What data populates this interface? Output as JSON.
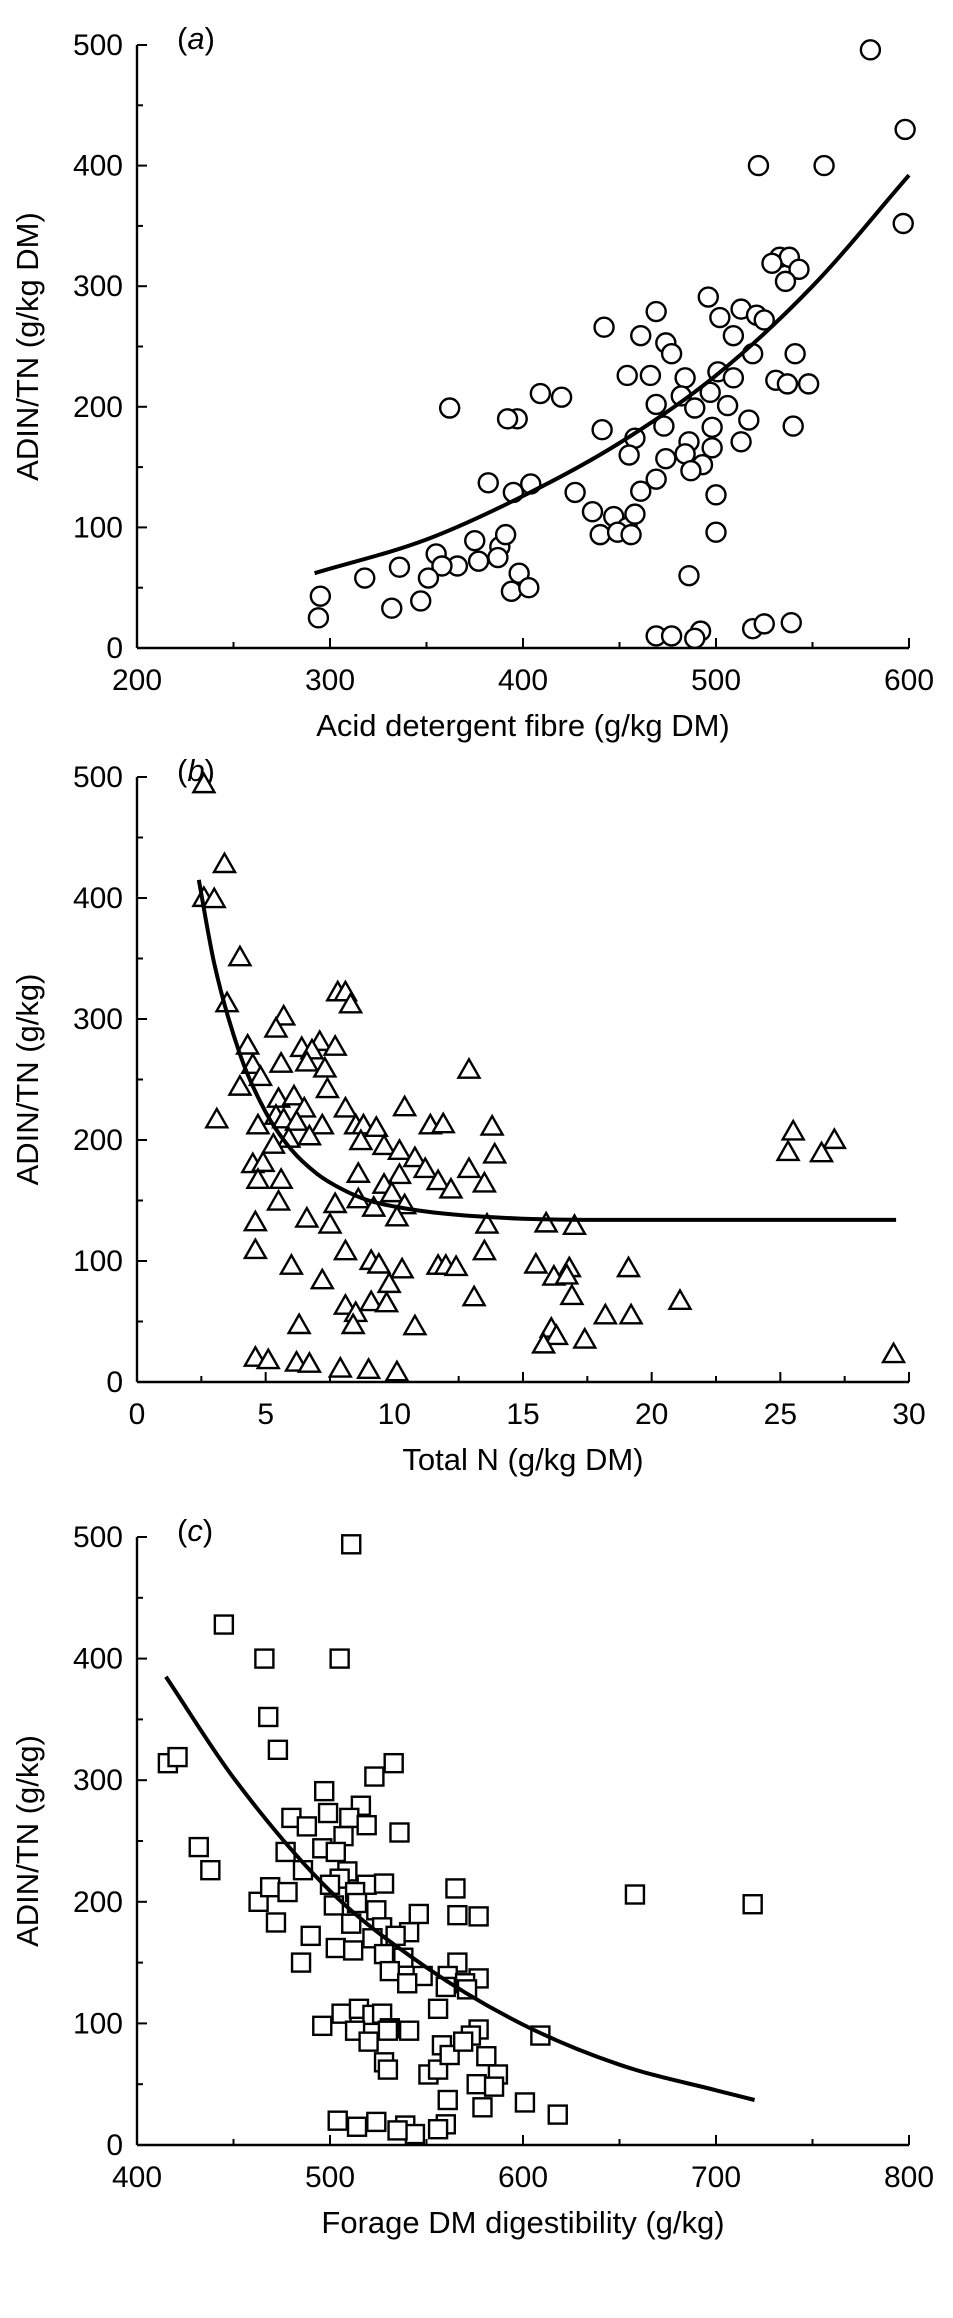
{
  "chart_data": [
    {
      "type": "scatter",
      "panel_label": "a",
      "marker": "circle",
      "xlabel": "Acid detergent fibre (g/kg DM)",
      "ylabel": "ADIN/TN (g/kg DM)",
      "xlim": [
        200,
        600
      ],
      "ylim": [
        0,
        500
      ],
      "xticks": [
        200,
        300,
        400,
        500,
        600
      ],
      "yticks": [
        0,
        100,
        200,
        300,
        400,
        500
      ],
      "fit": {
        "type": "exponential",
        "x": [
          292,
          350,
          400,
          450,
          500,
          550,
          600
        ],
        "y": [
          62,
          90,
          126,
          170,
          226,
          300,
          392
        ]
      },
      "points": [
        [
          580,
          496
        ],
        [
          598,
          430
        ],
        [
          522,
          400
        ],
        [
          556,
          400
        ],
        [
          597,
          352
        ],
        [
          533,
          324
        ],
        [
          538,
          324
        ],
        [
          529,
          319
        ],
        [
          543,
          314
        ],
        [
          536,
          304
        ],
        [
          496,
          291
        ],
        [
          513,
          281
        ],
        [
          469,
          279
        ],
        [
          521,
          276
        ],
        [
          502,
          274
        ],
        [
          525,
          272
        ],
        [
          442,
          266
        ],
        [
          461,
          259
        ],
        [
          509,
          259
        ],
        [
          474,
          253
        ],
        [
          477,
          244
        ],
        [
          519,
          244
        ],
        [
          541,
          244
        ],
        [
          454,
          226
        ],
        [
          501,
          229
        ],
        [
          466,
          226
        ],
        [
          484,
          224
        ],
        [
          509,
          224
        ],
        [
          531,
          222
        ],
        [
          537,
          219
        ],
        [
          548,
          219
        ],
        [
          497,
          212
        ],
        [
          409,
          211
        ],
        [
          482,
          209
        ],
        [
          420,
          208
        ],
        [
          469,
          202
        ],
        [
          506,
          201
        ],
        [
          489,
          199
        ],
        [
          362,
          199
        ],
        [
          397,
          190
        ],
        [
          392,
          190
        ],
        [
          441,
          181
        ],
        [
          498,
          183
        ],
        [
          517,
          189
        ],
        [
          473,
          184
        ],
        [
          540,
          184
        ],
        [
          458,
          174
        ],
        [
          486,
          171
        ],
        [
          513,
          171
        ],
        [
          498,
          166
        ],
        [
          484,
          161
        ],
        [
          455,
          160
        ],
        [
          474,
          157
        ],
        [
          493,
          152
        ],
        [
          487,
          147
        ],
        [
          469,
          140
        ],
        [
          461,
          130
        ],
        [
          427,
          129
        ],
        [
          500,
          127
        ],
        [
          382,
          137
        ],
        [
          395,
          129
        ],
        [
          404,
          136
        ],
        [
          436,
          113
        ],
        [
          447,
          109
        ],
        [
          454,
          100
        ],
        [
          458,
          111
        ],
        [
          440,
          94
        ],
        [
          449,
          96
        ],
        [
          500,
          96
        ],
        [
          375,
          89
        ],
        [
          388,
          84
        ],
        [
          391,
          94
        ],
        [
          456,
          94
        ],
        [
          387,
          75
        ],
        [
          366,
          68
        ],
        [
          355,
          78
        ],
        [
          358,
          68
        ],
        [
          377,
          72
        ],
        [
          336,
          67
        ],
        [
          351,
          58
        ],
        [
          318,
          58
        ],
        [
          398,
          62
        ],
        [
          394,
          47
        ],
        [
          403,
          50
        ],
        [
          347,
          39
        ],
        [
          332,
          33
        ],
        [
          295,
          43
        ],
        [
          294,
          25
        ],
        [
          486,
          60
        ],
        [
          519,
          16
        ],
        [
          539,
          21
        ],
        [
          525,
          20
        ],
        [
          492,
          14
        ],
        [
          469,
          10
        ],
        [
          477,
          10
        ],
        [
          489,
          8
        ]
      ]
    },
    {
      "type": "scatter",
      "panel_label": "b",
      "marker": "triangle",
      "xlabel": "Total N (g/kg DM)",
      "ylabel": "ADIN/TN (g/kg)",
      "xlim": [
        0,
        30
      ],
      "ylim": [
        0,
        500
      ],
      "xticks": [
        0,
        5,
        10,
        15,
        20,
        25,
        30
      ],
      "yticks": [
        0,
        100,
        200,
        300,
        400,
        500
      ],
      "fit": {
        "type": "exponential decay",
        "x": [
          2.4,
          3,
          4,
          5,
          6,
          7,
          8,
          9,
          10,
          12,
          15,
          20,
          29.5
        ],
        "y": [
          415,
          346,
          271,
          223,
          192,
          172,
          159,
          150,
          145,
          139,
          135,
          134,
          134
        ]
      },
      "points": [
        [
          2.6,
          494
        ],
        [
          3.4,
          428
        ],
        [
          2.6,
          400
        ],
        [
          3.0,
          399
        ],
        [
          4.0,
          351
        ],
        [
          3.5,
          313
        ],
        [
          7.8,
          322
        ],
        [
          8.1,
          322
        ],
        [
          8.3,
          312
        ],
        [
          5.7,
          302
        ],
        [
          5.4,
          292
        ],
        [
          7.1,
          281
        ],
        [
          4.3,
          278
        ],
        [
          6.4,
          276
        ],
        [
          6.8,
          274
        ],
        [
          7.7,
          277
        ],
        [
          4.5,
          262
        ],
        [
          5.6,
          263
        ],
        [
          4.8,
          252
        ],
        [
          6.6,
          264
        ],
        [
          7.3,
          259
        ],
        [
          12.9,
          258
        ],
        [
          4.0,
          244
        ],
        [
          5.5,
          234
        ],
        [
          6.1,
          236
        ],
        [
          7.4,
          242
        ],
        [
          6.5,
          226
        ],
        [
          8.1,
          226
        ],
        [
          10.4,
          227
        ],
        [
          4.7,
          212
        ],
        [
          5.4,
          220
        ],
        [
          5.7,
          217
        ],
        [
          6.2,
          215
        ],
        [
          7.2,
          212
        ],
        [
          8.5,
          212
        ],
        [
          8.8,
          212
        ],
        [
          3.1,
          217
        ],
        [
          9.3,
          210
        ],
        [
          11.4,
          212
        ],
        [
          11.9,
          213
        ],
        [
          13.8,
          211
        ],
        [
          25.5,
          207
        ],
        [
          27.1,
          200
        ],
        [
          5.9,
          201
        ],
        [
          6.7,
          203
        ],
        [
          8.7,
          199
        ],
        [
          9.6,
          195
        ],
        [
          10.2,
          191
        ],
        [
          10.8,
          185
        ],
        [
          13.9,
          188
        ],
        [
          26.6,
          189
        ],
        [
          25.3,
          190
        ],
        [
          5.3,
          196
        ],
        [
          4.5,
          180
        ],
        [
          4.9,
          181
        ],
        [
          8.6,
          172
        ],
        [
          10.2,
          171
        ],
        [
          11.2,
          176
        ],
        [
          12.9,
          176
        ],
        [
          5.6,
          167
        ],
        [
          9.6,
          163
        ],
        [
          11.7,
          166
        ],
        [
          13.5,
          164
        ],
        [
          4.7,
          167
        ],
        [
          9.9,
          156
        ],
        [
          8.6,
          151
        ],
        [
          10.4,
          146
        ],
        [
          12.2,
          159
        ],
        [
          5.5,
          149
        ],
        [
          7.7,
          147
        ],
        [
          9.2,
          144
        ],
        [
          10.1,
          136
        ],
        [
          6.6,
          135
        ],
        [
          13.6,
          130
        ],
        [
          15.9,
          131
        ],
        [
          17.0,
          129
        ],
        [
          4.6,
          132
        ],
        [
          7.5,
          130
        ],
        [
          8.1,
          108
        ],
        [
          4.6,
          109
        ],
        [
          13.5,
          108
        ],
        [
          9.1,
          100
        ],
        [
          6.0,
          96
        ],
        [
          9.4,
          97
        ],
        [
          10.3,
          93
        ],
        [
          11.7,
          96
        ],
        [
          12.0,
          96
        ],
        [
          12.4,
          95
        ],
        [
          15.5,
          97
        ],
        [
          16.8,
          94
        ],
        [
          19.1,
          94
        ],
        [
          9.8,
          81
        ],
        [
          7.2,
          84
        ],
        [
          13.1,
          70
        ],
        [
          16.2,
          87
        ],
        [
          16.7,
          88
        ],
        [
          16.9,
          71
        ],
        [
          21.1,
          67
        ],
        [
          8.1,
          63
        ],
        [
          8.5,
          57
        ],
        [
          9.1,
          66
        ],
        [
          9.7,
          65
        ],
        [
          10.8,
          46
        ],
        [
          6.3,
          47
        ],
        [
          8.4,
          47
        ],
        [
          18.2,
          55
        ],
        [
          19.2,
          55
        ],
        [
          16.1,
          44
        ],
        [
          16.3,
          38
        ],
        [
          15.8,
          31
        ],
        [
          17.4,
          35
        ],
        [
          4.6,
          20
        ],
        [
          5.1,
          18
        ],
        [
          6.2,
          16
        ],
        [
          6.7,
          15
        ],
        [
          7.9,
          11
        ],
        [
          9.0,
          10
        ],
        [
          10.1,
          8
        ],
        [
          29.4,
          23
        ]
      ]
    },
    {
      "type": "scatter",
      "panel_label": "c",
      "marker": "square",
      "xlabel": "Forage DM digestibility (g/kg)",
      "ylabel": "ADIN/TN (g/kg)",
      "xlim": [
        400,
        800
      ],
      "ylim": [
        0,
        500
      ],
      "xticks": [
        400,
        500,
        600,
        700,
        800
      ],
      "yticks": [
        0,
        100,
        200,
        300,
        400,
        500
      ],
      "fit": {
        "type": "exponential decay",
        "x": [
          415,
          450,
          500,
          550,
          600,
          650,
          700,
          720
        ],
        "y": [
          385,
          302,
          209,
          146,
          99,
          66,
          45,
          37
        ]
      },
      "points": [
        [
          511,
          494
        ],
        [
          445,
          428
        ],
        [
          466,
          400
        ],
        [
          505,
          400
        ],
        [
          468,
          352
        ],
        [
          473,
          325
        ],
        [
          416,
          314
        ],
        [
          421,
          319
        ],
        [
          533,
          314
        ],
        [
          523,
          303
        ],
        [
          497,
          291
        ],
        [
          516,
          279
        ],
        [
          499,
          273
        ],
        [
          480,
          269
        ],
        [
          510,
          269
        ],
        [
          488,
          262
        ],
        [
          519,
          263
        ],
        [
          536,
          257
        ],
        [
          507,
          254
        ],
        [
          432,
          245
        ],
        [
          477,
          241
        ],
        [
          496,
          244
        ],
        [
          503,
          241
        ],
        [
          486,
          226
        ],
        [
          509,
          225
        ],
        [
          505,
          219
        ],
        [
          519,
          214
        ],
        [
          528,
          215
        ],
        [
          438,
          226
        ],
        [
          500,
          214
        ],
        [
          513,
          208
        ],
        [
          463,
          200
        ],
        [
          469,
          212
        ],
        [
          478,
          208
        ],
        [
          514,
          199
        ],
        [
          565,
          211
        ],
        [
          658,
          206
        ],
        [
          719,
          198
        ],
        [
          502,
          197
        ],
        [
          524,
          193
        ],
        [
          546,
          190
        ],
        [
          566,
          189
        ],
        [
          577,
          188
        ],
        [
          472,
          183
        ],
        [
          511,
          182
        ],
        [
          527,
          179
        ],
        [
          541,
          175
        ],
        [
          534,
          172
        ],
        [
          522,
          170
        ],
        [
          490,
          172
        ],
        [
          503,
          162
        ],
        [
          512,
          160
        ],
        [
          528,
          157
        ],
        [
          538,
          154
        ],
        [
          566,
          150
        ],
        [
          485,
          150
        ],
        [
          531,
          143
        ],
        [
          548,
          139
        ],
        [
          561,
          139
        ],
        [
          577,
          137
        ],
        [
          570,
          133
        ],
        [
          540,
          133
        ],
        [
          560,
          130
        ],
        [
          571,
          128
        ],
        [
          496,
          98
        ],
        [
          506,
          108
        ],
        [
          515,
          112
        ],
        [
          522,
          107
        ],
        [
          527,
          108
        ],
        [
          531,
          96
        ],
        [
          541,
          94
        ],
        [
          530,
          94
        ],
        [
          556,
          112
        ],
        [
          577,
          95
        ],
        [
          573,
          90
        ],
        [
          609,
          90
        ],
        [
          513,
          94
        ],
        [
          520,
          85
        ],
        [
          528,
          68
        ],
        [
          530,
          62
        ],
        [
          551,
          58
        ],
        [
          556,
          62
        ],
        [
          558,
          82
        ],
        [
          562,
          74
        ],
        [
          569,
          85
        ],
        [
          581,
          73
        ],
        [
          576,
          50
        ],
        [
          587,
          58
        ],
        [
          601,
          35
        ],
        [
          585,
          48
        ],
        [
          561,
          37
        ],
        [
          579,
          31
        ],
        [
          618,
          25
        ],
        [
          560,
          17
        ],
        [
          524,
          19
        ],
        [
          539,
          16
        ],
        [
          544,
          9
        ],
        [
          556,
          13
        ],
        [
          535,
          12
        ],
        [
          514,
          15
        ],
        [
          504,
          20
        ]
      ]
    }
  ]
}
